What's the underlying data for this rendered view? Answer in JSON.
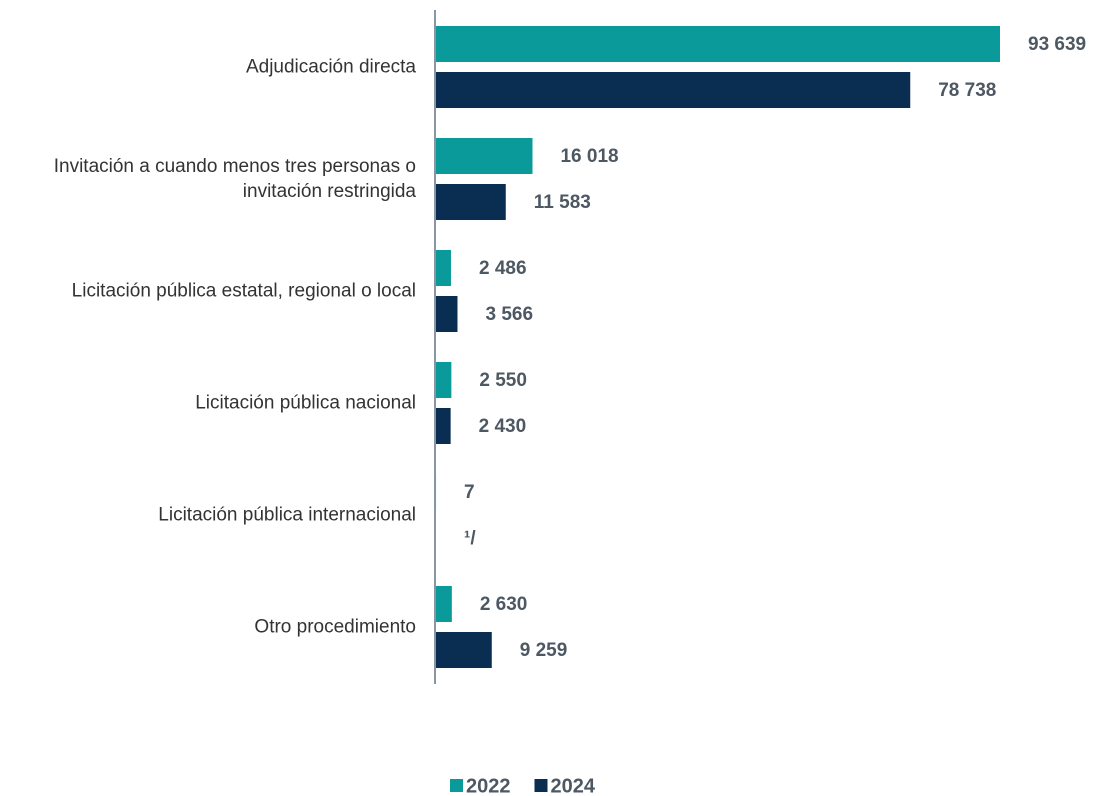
{
  "chart_data": {
    "type": "bar",
    "orientation": "horizontal",
    "categories": [
      "Adjudicación directa",
      "Invitación a cuando menos tres personas o\ninvitación restringida",
      "Licitación pública estatal, regional o local",
      "Licitación pública nacional",
      "Licitación pública internacional",
      "Otro procedimiento"
    ],
    "series": [
      {
        "name": "2022",
        "color": "#0a9a9a",
        "values": [
          93639,
          16018,
          2486,
          2550,
          7,
          2630
        ],
        "value_labels": [
          "93 639",
          "16 018",
          "2 486",
          "2 550",
          "7",
          "2 630"
        ]
      },
      {
        "name": "2024",
        "color": "#0a2d52",
        "values": [
          78738,
          11583,
          3566,
          2430,
          null,
          9259
        ],
        "value_labels": [
          "78 738",
          "11 583",
          "3 566",
          "2 430",
          "¹/",
          "9 259"
        ]
      }
    ]
  }
}
